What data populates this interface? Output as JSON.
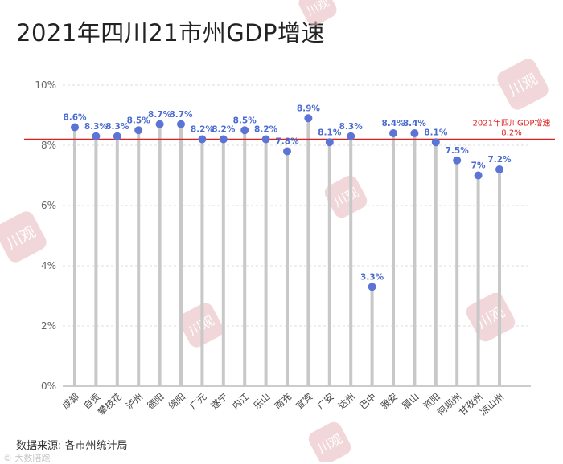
{
  "title": "2021年四川21市州GDP增速",
  "source": "数据来源: 各市州统计局",
  "corner_mark": "© 大数陪跑",
  "watermark": "川观",
  "colors": {
    "point": "#5b74d6",
    "stem": "#c8c8c8",
    "value_label": "#4a6bd0",
    "reference_line": "#e02020",
    "watermark": "#e8b8bc"
  },
  "chart_data": {
    "type": "lollipop",
    "title": "2021年四川21市州GDP增速",
    "xlabel": "",
    "ylabel": "",
    "ylim": [
      0,
      10
    ],
    "y_ticks": [
      "0%",
      "2%",
      "4%",
      "6%",
      "8%",
      "10%"
    ],
    "y_tick_values": [
      0,
      2,
      4,
      6,
      8,
      10
    ],
    "grid": "horizontal dashed",
    "categories": [
      "成都",
      "自贡",
      "攀枝花",
      "泸州",
      "德阳",
      "绵阳",
      "广元",
      "遂宁",
      "内江",
      "乐山",
      "南充",
      "宜宾",
      "广安",
      "达州",
      "巴中",
      "雅安",
      "眉山",
      "资阳",
      "阿坝州",
      "甘孜州",
      "凉山州"
    ],
    "values": [
      8.6,
      8.3,
      8.3,
      8.5,
      8.7,
      8.7,
      8.2,
      8.2,
      8.5,
      8.2,
      7.8,
      8.9,
      8.1,
      8.3,
      3.3,
      8.4,
      8.4,
      8.1,
      7.5,
      7.0,
      7.2
    ],
    "value_labels": [
      "8.6%",
      "8.3%",
      "8.3%",
      "8.5%",
      "8.7%",
      "8.7%",
      "8.2%",
      "8.2%",
      "8.5%",
      "8.2%",
      "7.8%",
      "8.9%",
      "8.1%",
      "8.3%",
      "3.3%",
      "8.4%",
      "8.4%",
      "8.1%",
      "7.5%",
      "7%",
      "7.2%"
    ],
    "reference_line": {
      "value": 8.2,
      "label_line1": "2021年四川GDP增速",
      "label_line2": "8.2%"
    }
  }
}
